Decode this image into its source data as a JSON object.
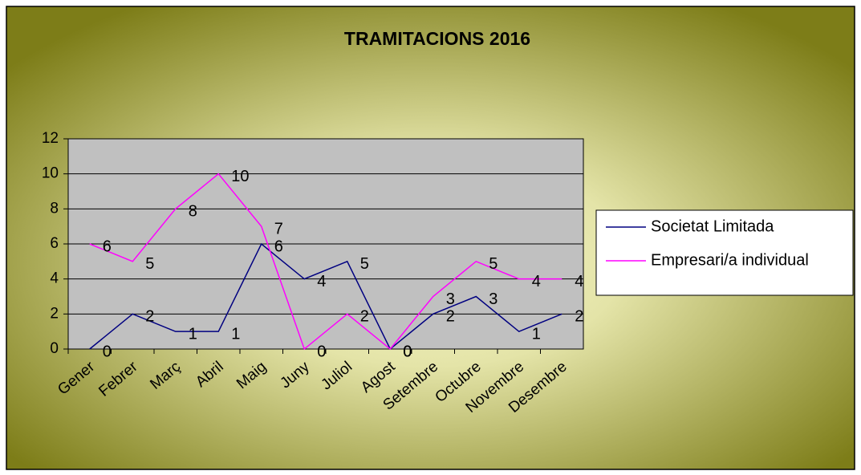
{
  "chart_data": {
    "type": "line",
    "title": "TRAMITACIONS 2016",
    "categories": [
      "Gener",
      "Febrer",
      "Març",
      "Abril",
      "Maig",
      "Juny",
      "Juliol",
      "Agost",
      "Setembre",
      "Octubre",
      "Novembre",
      "Desembre"
    ],
    "series": [
      {
        "name": "Societat Limitada",
        "color": "#000080",
        "values": [
          0,
          2,
          1,
          1,
          6,
          4,
          5,
          0,
          2,
          3,
          1,
          2
        ]
      },
      {
        "name": "Empresari/a individual",
        "color": "#ff00ff",
        "values": [
          6,
          5,
          8,
          10,
          7,
          0,
          2,
          0,
          3,
          5,
          4,
          4
        ]
      }
    ],
    "ylim": [
      0,
      12
    ],
    "yticks": [
      0,
      2,
      4,
      6,
      8,
      10,
      12
    ],
    "grid": true,
    "legend": "right"
  }
}
